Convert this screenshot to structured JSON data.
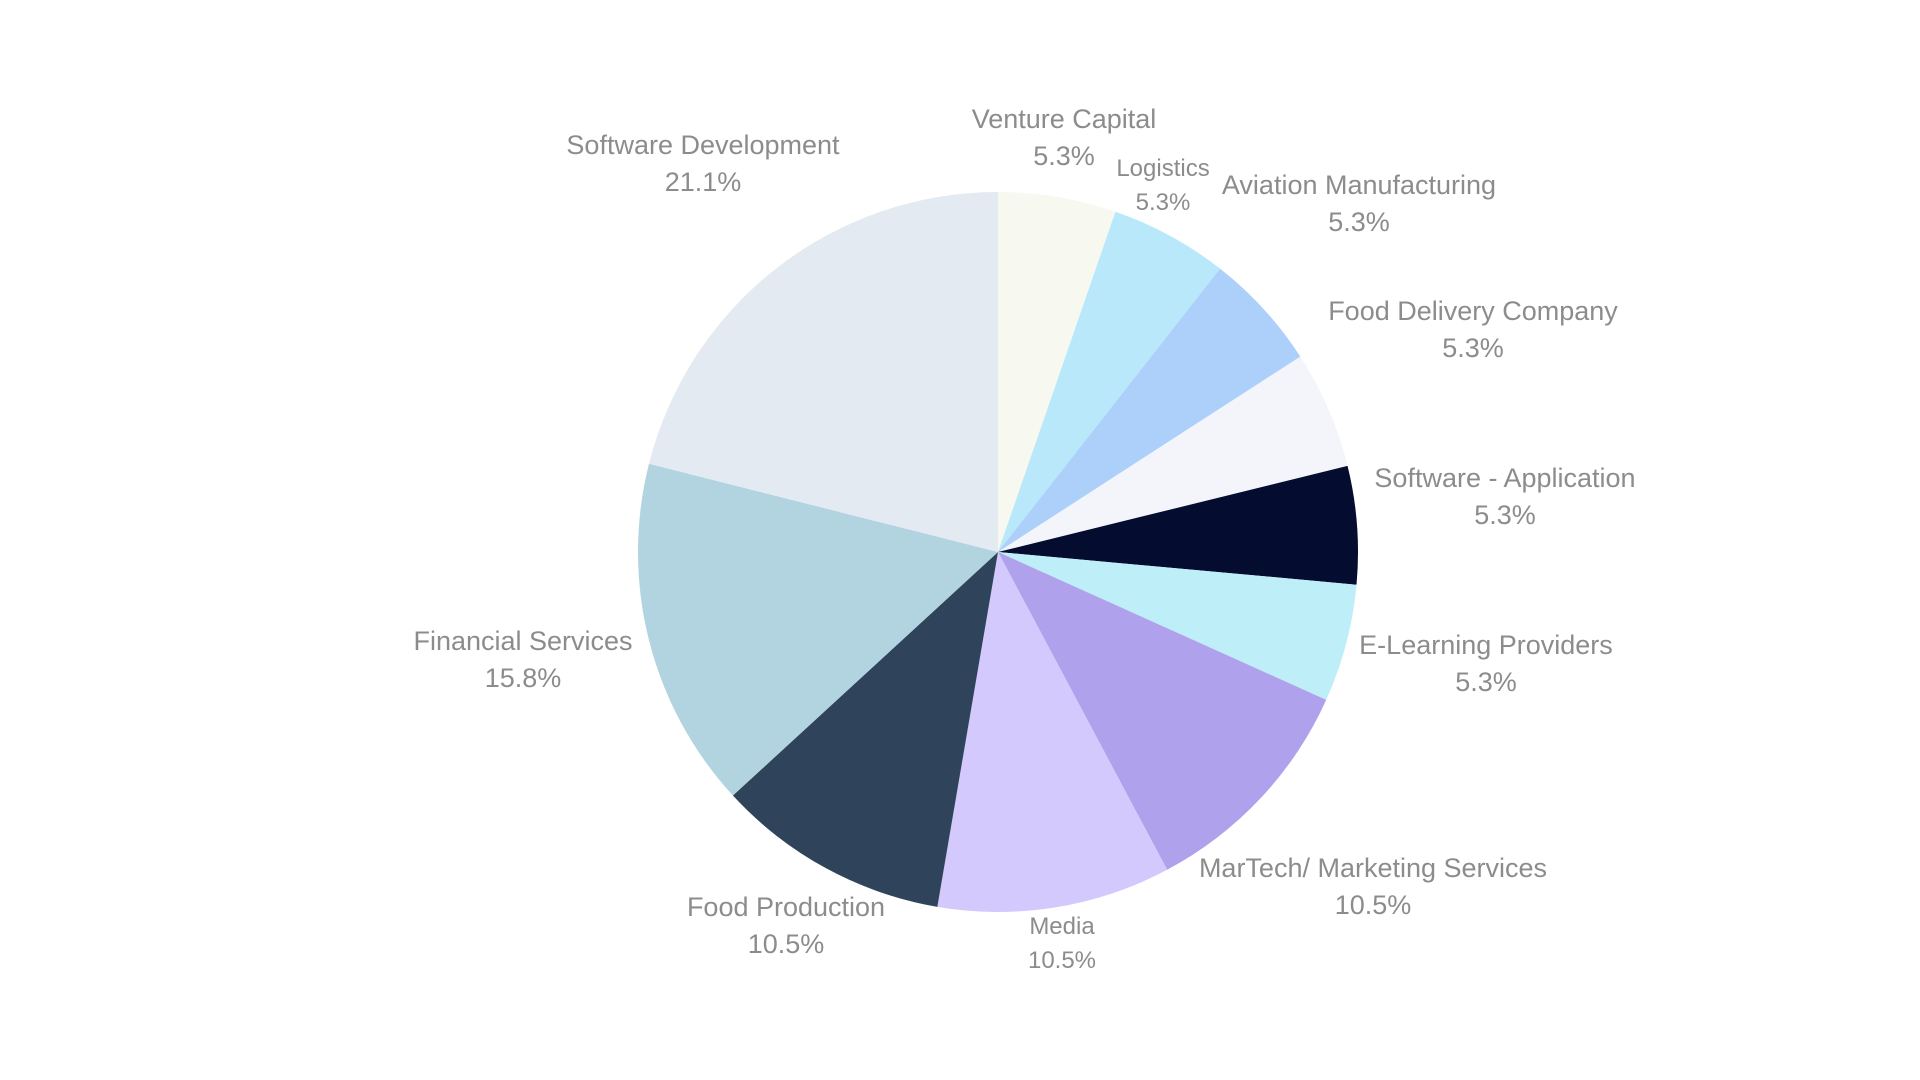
{
  "chart_data": {
    "type": "pie",
    "title": "",
    "legend": "none",
    "unit": "%",
    "slices": [
      {
        "label": "Venture Capital",
        "value": 5.3,
        "display": "5.3%",
        "color": "#f7f8f0"
      },
      {
        "label": "Logistics",
        "value": 5.3,
        "display": "5.3%",
        "color": "#b9e8fb"
      },
      {
        "label": "Aviation Manufacturing",
        "value": 5.3,
        "display": "5.3%",
        "color": "#acd0fa"
      },
      {
        "label": "Food Delivery Company",
        "value": 5.3,
        "display": "5.3%",
        "color": "#f3f5fb"
      },
      {
        "label": "Software - Application",
        "value": 5.3,
        "display": "5.3%",
        "color": "#040c30"
      },
      {
        "label": "E-Learning Providers",
        "value": 5.3,
        "display": "5.3%",
        "color": "#beeef7"
      },
      {
        "label": "MarTech/ Marketing Services",
        "value": 10.5,
        "display": "10.5%",
        "color": "#b0a1ec"
      },
      {
        "label": "Media",
        "value": 10.5,
        "display": "10.5%",
        "color": "#d3c9fd"
      },
      {
        "label": "Food Production",
        "value": 10.5,
        "display": "10.5%",
        "color": "#2f445b"
      },
      {
        "label": "Financial Services",
        "value": 15.8,
        "display": "15.8%",
        "color": "#b2d4e0"
      },
      {
        "label": "Software Development",
        "value": 21.1,
        "display": "21.1%",
        "color": "#e3eaf2"
      }
    ]
  }
}
